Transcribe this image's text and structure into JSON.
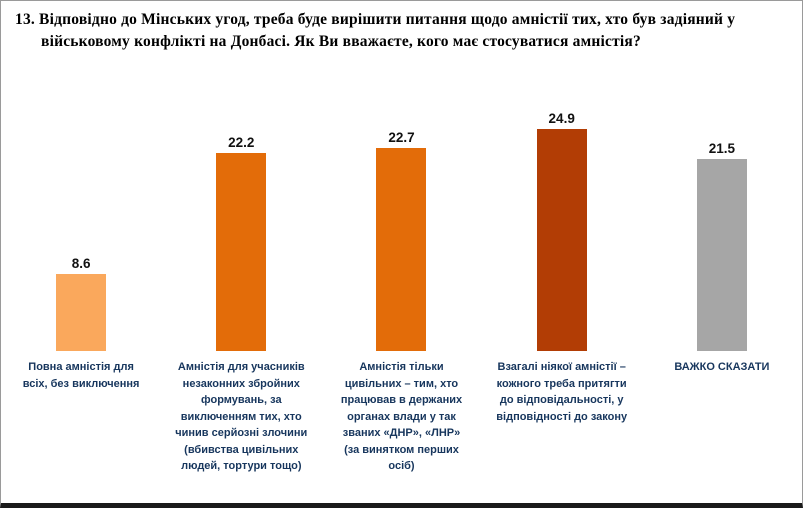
{
  "title": "13. Відповідно до Мінських угод, треба буде вирішити питання щодо амністії тих, хто був задіяний у військовому конфлікті на Донбасі. Як Ви вважаєте, кого має стосуватися амністія?",
  "chart_data": {
    "type": "bar",
    "title": "13. Відповідно до Мінських угод, треба буде вирішити питання щодо амністії тих, хто був задіяний у військовому конфлікті на Донбасі. Як Ви вважаєте, кого має стосуватися амністія?",
    "categories": [
      "Повна амністія для всіх, без виключення",
      "Амністія для учасників незаконних збройних формувань, за виключенням тих, хто чинив серйозні злочини (вбивства цивільних людей, тортури тощо)",
      "Амністія тільки цивільних – тим, хто працював в держаних органах влади у так званих «ДНР», «ЛНР» (за винятком перших осіб)",
      "Взагалі ніякої амністії – кожного треба притягти до відповідальності, у відповідності до закону",
      "ВАЖКО СКАЗАТИ"
    ],
    "values": [
      8.6,
      22.2,
      22.7,
      24.9,
      21.5
    ],
    "value_labels": [
      "8.6",
      "22.2",
      "22.7",
      "24.9",
      "21.5"
    ],
    "bar_colors": [
      "#FAA85C",
      "#E36C09",
      "#E36C09",
      "#B23D05",
      "#A6A6A6"
    ],
    "xlabel": "",
    "ylabel": "",
    "ylim": [
      0,
      28
    ],
    "grid": false,
    "legend": "none",
    "label_color": "#17365d"
  }
}
